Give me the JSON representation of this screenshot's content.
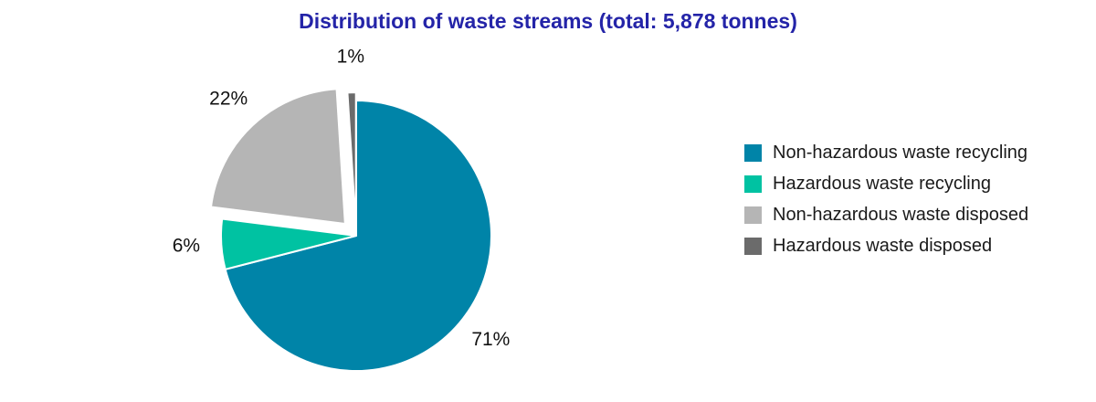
{
  "chart_data": {
    "type": "pie",
    "title": "Distribution of waste streams (total: 5,878 tonnes)",
    "title_color": "#2424a8",
    "total_tonnes": "5,878",
    "labels": [
      "Non-hazardous waste recycling",
      "Hazardous waste recycling",
      "Non-hazardous waste disposed",
      "Hazardous waste disposed"
    ],
    "values": [
      71,
      6,
      22,
      1
    ],
    "percent_labels": [
      "71%",
      "6%",
      "22%",
      "1%"
    ],
    "colors": [
      "#0084a8",
      "#00c2a2",
      "#b5b5b5",
      "#6b6b6b"
    ],
    "explode": [
      0,
      0,
      0.12,
      0.06
    ],
    "legend_position": "right",
    "label_text_color": "#111111"
  }
}
